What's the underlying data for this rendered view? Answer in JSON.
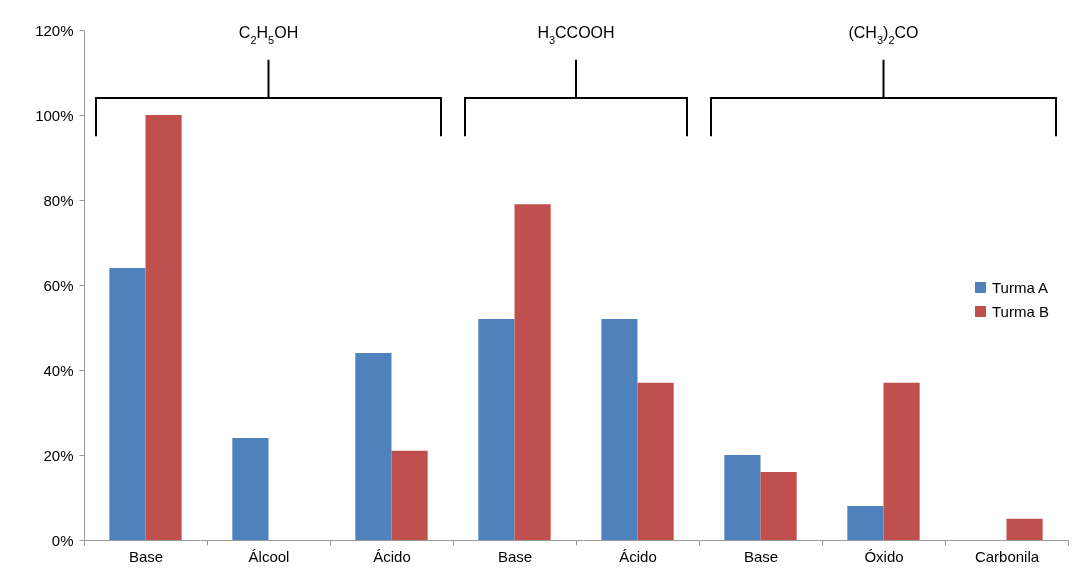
{
  "chart_data": {
    "type": "bar",
    "categories": [
      "Base",
      "Álcool",
      "Ácido",
      "Base",
      "Ácido",
      "Base",
      "Óxido",
      "Carbonila"
    ],
    "series": [
      {
        "name": "Turma A",
        "color": "#4f81bd",
        "values": [
          64,
          24,
          44,
          52,
          52,
          20,
          8,
          null
        ]
      },
      {
        "name": "Turma B",
        "color": "#c0504d",
        "values": [
          100,
          null,
          21,
          79,
          37,
          16,
          37,
          5
        ]
      }
    ],
    "ylim": [
      0,
      120
    ],
    "yticks": [
      {
        "value": 0,
        "label": "0%"
      },
      {
        "value": 20,
        "label": "20%"
      },
      {
        "value": 40,
        "label": "40%"
      },
      {
        "value": 60,
        "label": "60%"
      },
      {
        "value": 80,
        "label": "80%"
      },
      {
        "value": 100,
        "label": "100%"
      },
      {
        "value": 120,
        "label": "120%"
      }
    ],
    "annotations": [
      "C$_{2}$H$_{5}$OH",
      "H$_{3}$CCOOH",
      "(CH$_{3}$)$_{2}$CO"
    ],
    "grid": false,
    "legend": "right"
  }
}
